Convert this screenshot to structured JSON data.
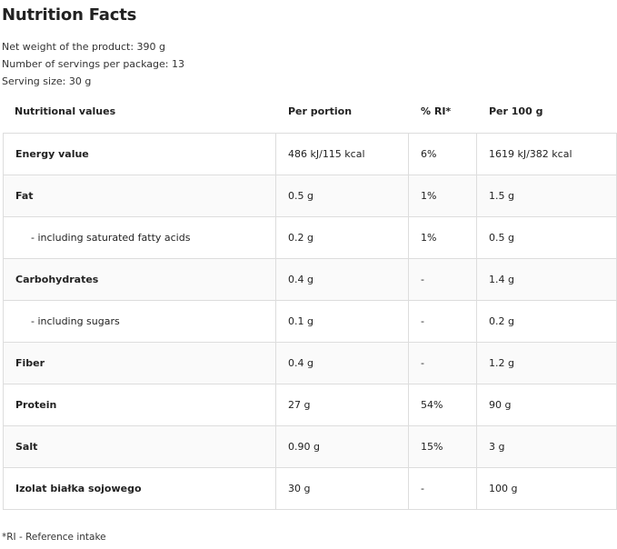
{
  "title": "Nutrition Facts",
  "meta": [
    "Net weight of the product: 390 g",
    "Number of servings per package: 13",
    "Serving size: 30 g"
  ],
  "headers": [
    "Nutritional values",
    "Per portion",
    "% RI*",
    "Per 100 g"
  ],
  "rows": [
    {
      "name": "Energy value",
      "portion": "486 kJ/115 kcal",
      "ri": "6%",
      "per100": "1619 kJ/382 kcal",
      "sub": false
    },
    {
      "name": "Fat",
      "portion": "0.5 g",
      "ri": "1%",
      "per100": "1.5 g",
      "sub": false
    },
    {
      "name": "- including saturated fatty acids",
      "portion": "0.2 g",
      "ri": "1%",
      "per100": "0.5 g",
      "sub": true
    },
    {
      "name": "Carbohydrates",
      "portion": "0.4 g",
      "ri": "-",
      "per100": "1.4 g",
      "sub": false
    },
    {
      "name": "- including sugars",
      "portion": "0.1 g",
      "ri": "-",
      "per100": "0.2 g",
      "sub": true
    },
    {
      "name": "Fiber",
      "portion": "0.4 g",
      "ri": "-",
      "per100": "1.2 g",
      "sub": false
    },
    {
      "name": "Protein",
      "portion": "27 g",
      "ri": "54%",
      "per100": "90 g",
      "sub": false
    },
    {
      "name": "Salt",
      "portion": "0.90 g",
      "ri": "15%",
      "per100": "3 g",
      "sub": false
    },
    {
      "name": "Izolat białka sojowego",
      "portion": "30 g",
      "ri": "-",
      "per100": "100 g",
      "sub": false
    }
  ],
  "footnote": "*RI - Reference intake"
}
